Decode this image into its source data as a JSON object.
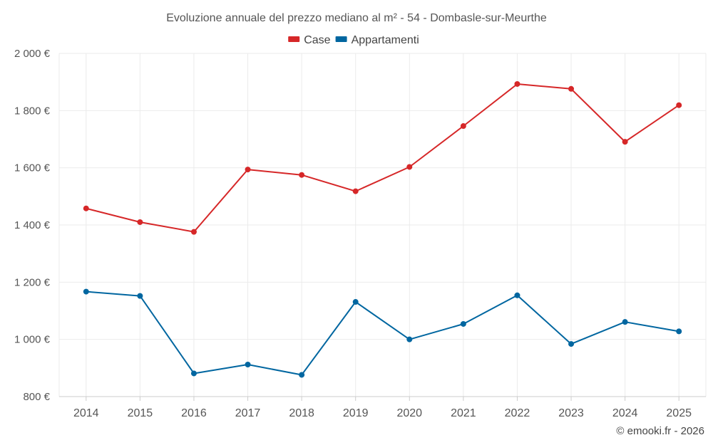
{
  "chart_data": {
    "type": "line",
    "title": "Evoluzione annuale del prezzo mediano al m² - 54 - Dombasle-sur-Meurthe",
    "xlabel": "",
    "ylabel": "",
    "categories": [
      "2014",
      "2015",
      "2016",
      "2017",
      "2018",
      "2019",
      "2020",
      "2021",
      "2022",
      "2023",
      "2024",
      "2025"
    ],
    "ylim": [
      800,
      2000
    ],
    "yticks": [
      800,
      1000,
      1200,
      1400,
      1600,
      1800,
      2000
    ],
    "ytick_labels": [
      "800 €",
      "1 000 €",
      "1 200 €",
      "1 400 €",
      "1 600 €",
      "1 800 €",
      "2 000 €"
    ],
    "legend_position": "top-center",
    "grid": true,
    "series": [
      {
        "name": "Case",
        "color": "#d62728",
        "values": [
          1458,
          1410,
          1376,
          1594,
          1575,
          1518,
          1603,
          1746,
          1893,
          1876,
          1691,
          1819
        ]
      },
      {
        "name": "Appartamenti",
        "color": "#0066a0",
        "values": [
          1167,
          1152,
          881,
          912,
          876,
          1131,
          1000,
          1054,
          1154,
          984,
          1061,
          1028
        ]
      }
    ]
  },
  "credit": "© emooki.fr - 2026"
}
